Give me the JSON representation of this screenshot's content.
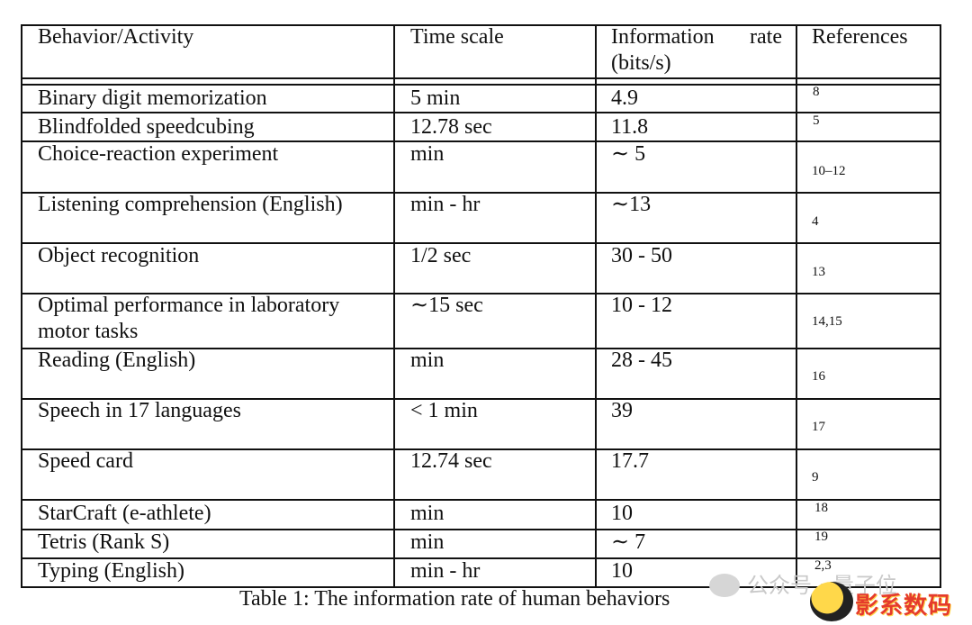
{
  "table": {
    "headers": {
      "behavior": "Behavior/Activity",
      "timescale": "Time scale",
      "rate_line1": "Information rate",
      "rate_line2": "(bits/s)",
      "references": "References"
    },
    "rows": [
      {
        "behavior": "Binary digit memorization",
        "timescale": "5 min",
        "rate": "4.9",
        "ref": "8"
      },
      {
        "behavior": "Blindfolded speedcubing",
        "timescale": "12.78 sec",
        "rate": "11.8",
        "ref": "5"
      },
      {
        "behavior": "Choice-reaction experiment",
        "timescale": "min",
        "rate": "∼ 5",
        "ref": "10–12"
      },
      {
        "behavior": "Listening comprehension (English)",
        "timescale": "min - hr",
        "rate": "∼13",
        "ref": "4"
      },
      {
        "behavior": "Object recognition",
        "timescale": "1/2 sec",
        "rate": "30 - 50",
        "ref": "13"
      },
      {
        "behavior": "Optimal performance in laboratory",
        "behavior2": "motor tasks",
        "timescale": "∼15 sec",
        "rate": "10 - 12",
        "ref": "14,15"
      },
      {
        "behavior": "Reading (English)",
        "timescale": "min",
        "rate": "28 - 45",
        "ref": "16"
      },
      {
        "behavior": "Speech in 17 languages",
        "timescale": "< 1 min",
        "rate": "39",
        "ref": "17"
      },
      {
        "behavior": "Speed card",
        "timescale": "12.74 sec",
        "rate": "17.7",
        "ref": "9"
      },
      {
        "behavior": "StarCraft (e-athlete)",
        "timescale": "min",
        "rate": "10",
        "ref": "18"
      },
      {
        "behavior": "Tetris (Rank S)",
        "timescale": "min",
        "rate": "∼ 7",
        "ref": "19"
      },
      {
        "behavior": "Typing (English)",
        "timescale": "min - hr",
        "rate": "10",
        "ref": "2,3"
      }
    ]
  },
  "caption": "Table 1: The information rate of human behaviors",
  "watermark": {
    "text": "公众号 · 量子位",
    "logo_text": "影系数码"
  }
}
